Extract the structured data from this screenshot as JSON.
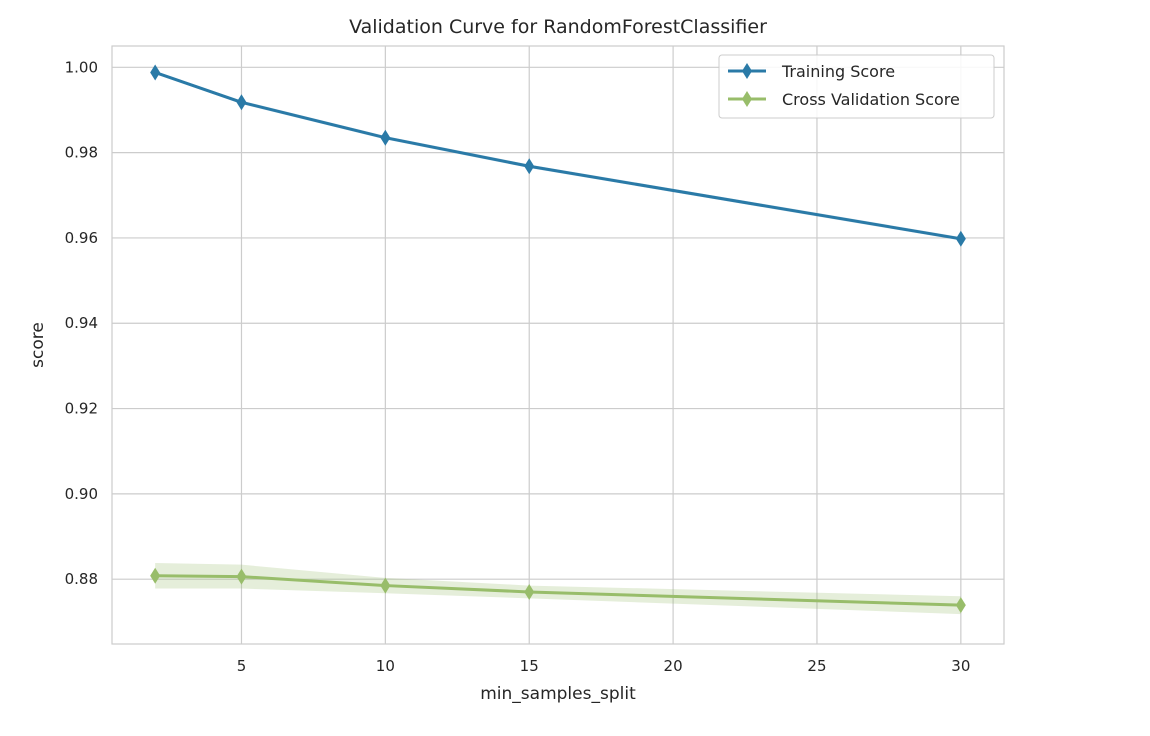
{
  "chart_data": {
    "type": "line",
    "title": "Validation Curve for RandomForestClassifier",
    "xlabel": "min_samples_split",
    "ylabel": "score",
    "x": [
      2,
      5,
      10,
      15,
      30
    ],
    "xlim": [
      0.5,
      31.5
    ],
    "ylim": [
      0.8648,
      1.005
    ],
    "xticks": [
      5,
      10,
      15,
      20,
      25,
      30
    ],
    "xtick_labels": [
      "5",
      "10",
      "15",
      "20",
      "25",
      "30"
    ],
    "yticks": [
      0.88,
      0.9,
      0.92,
      0.94,
      0.96,
      0.98,
      1.0
    ],
    "ytick_labels": [
      "0.88",
      "0.90",
      "0.92",
      "0.94",
      "0.96",
      "0.98",
      "1.00"
    ],
    "grid": true,
    "legend_position": "top-right",
    "series": [
      {
        "name": "Training Score",
        "color": "#2a7aa7",
        "values": [
          0.9988,
          0.9918,
          0.9835,
          0.9768,
          0.9598
        ],
        "band_low": [
          0.9985,
          0.9914,
          0.9831,
          0.9764,
          0.9594
        ],
        "band_high": [
          0.9991,
          0.9922,
          0.9839,
          0.9772,
          0.9602
        ]
      },
      {
        "name": "Cross Validation Score",
        "color": "#98bd6a",
        "values": [
          0.8808,
          0.8806,
          0.8785,
          0.877,
          0.8739
        ],
        "band_low": [
          0.8778,
          0.8778,
          0.8767,
          0.8755,
          0.8718
        ],
        "band_high": [
          0.8838,
          0.8834,
          0.8803,
          0.8785,
          0.876
        ]
      }
    ]
  }
}
